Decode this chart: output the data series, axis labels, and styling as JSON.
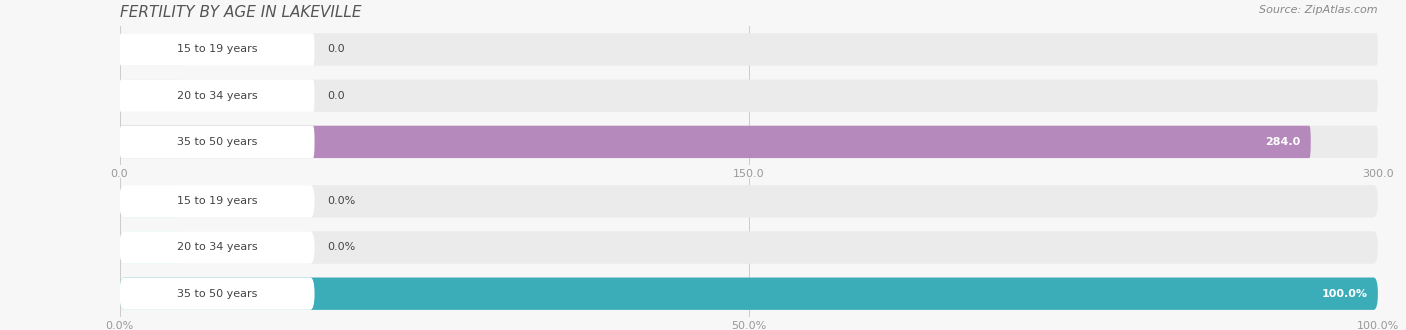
{
  "title": "FERTILITY BY AGE IN LAKEVILLE",
  "source": "Source: ZipAtlas.com",
  "top_chart": {
    "categories": [
      "15 to 19 years",
      "20 to 34 years",
      "35 to 50 years"
    ],
    "values": [
      0.0,
      0.0,
      284.0
    ],
    "xlim": [
      0,
      300
    ],
    "xticks": [
      0.0,
      150.0,
      300.0
    ],
    "xtick_labels": [
      "0.0",
      "150.0",
      "300.0"
    ],
    "bar_color": "#b589bb",
    "bar_bg_color": "#e8e4ed",
    "bar_bg_color2": "#ebebeb",
    "value_threshold": 50
  },
  "bottom_chart": {
    "categories": [
      "15 to 19 years",
      "20 to 34 years",
      "35 to 50 years"
    ],
    "values": [
      0.0,
      0.0,
      100.0
    ],
    "xlim": [
      0,
      100
    ],
    "xticks": [
      0.0,
      50.0,
      100.0
    ],
    "xtick_labels": [
      "0.0%",
      "50.0%",
      "100.0%"
    ],
    "bar_color": "#3aadb8",
    "bar_bg_color": "#cce9ec",
    "bar_bg_color2": "#ebebeb",
    "value_threshold": 10
  },
  "background_color": "#f0f0f0",
  "bar_bg_color": "#e8e8e8",
  "label_text_color": "#444444",
  "tick_color": "#999999",
  "title_fontsize": 11,
  "label_fontsize": 8,
  "tick_fontsize": 8,
  "source_fontsize": 8
}
